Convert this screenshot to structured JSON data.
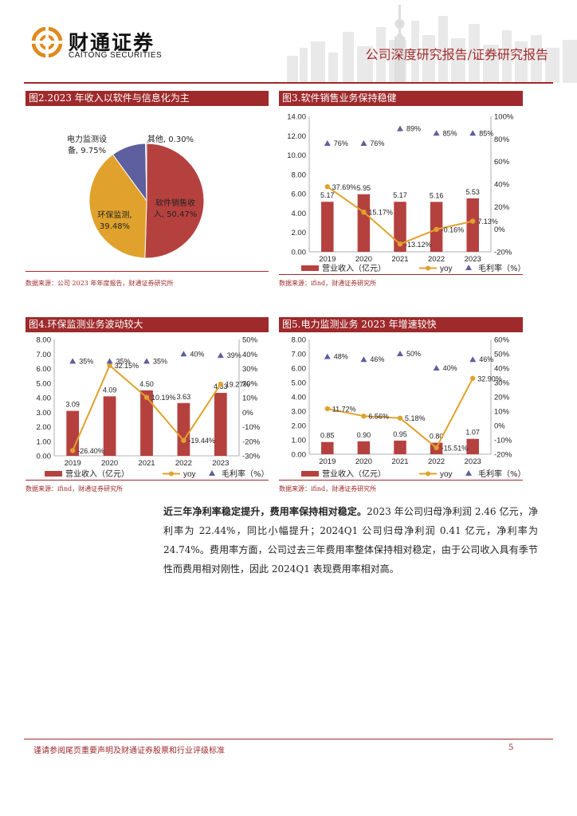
{
  "header": {
    "brand_cn": "财通证券",
    "brand_en": "CAITONG SECURITIES",
    "report_type": "公司深度研究报告/证券研究报告",
    "accent_color": "#9e2a2b"
  },
  "figures": {
    "fig2": {
      "title": "图2.2023 年收入以软件与信息化为主",
      "source": "数据来源：公司 2023 年年度报告，财通证券研究所"
    },
    "fig3": {
      "title": "图3.软件销售业务保持稳健",
      "source": "数据来源：ifind，财通证券研究所"
    },
    "fig4": {
      "title": "图4.环保监测业务波动较大",
      "source": "数据来源：ifind，财通证券研究所"
    },
    "fig5": {
      "title": "图5.电力监测业务 2023 年增速较快",
      "source": "数据来源：ifind，财通证券研究所"
    }
  },
  "chart_data": [
    {
      "id": "fig2",
      "type": "pie",
      "title": "图2.2023 年收入以软件与信息化为主",
      "slices": [
        {
          "name": "软件销售收入",
          "value": 50.47,
          "label_lines": [
            "软件销售收",
            "入, 50.47%"
          ],
          "color": "#b5413f"
        },
        {
          "name": "环保监测",
          "value": 39.48,
          "label_lines": [
            "环保监测,",
            "39.48%"
          ],
          "color": "#e0a22c"
        },
        {
          "name": "电力监测设备",
          "value": 9.75,
          "label_lines": [
            "电力监测设",
            "备, 9.75%"
          ],
          "color": "#5d5f9e"
        },
        {
          "name": "其他",
          "value": 0.3,
          "label_lines": [
            "其他, 0.30%"
          ],
          "color": "#6a9bc9"
        }
      ]
    },
    {
      "id": "fig3",
      "type": "bar",
      "title": "图3.软件销售业务保持稳健",
      "categories": [
        "2019",
        "2020",
        "2021",
        "2022",
        "2023"
      ],
      "series": [
        {
          "name": "营业收入（亿元）",
          "type": "bar",
          "axis": "left",
          "values": [
            5.17,
            5.95,
            5.17,
            5.16,
            5.53
          ],
          "labels": [
            "5.17",
            "5.95",
            "5.17",
            "5.16",
            "5.53"
          ]
        },
        {
          "name": "yoy",
          "type": "line",
          "axis": "right",
          "values": [
            37.69,
            15.17,
            -13.12,
            -0.16,
            7.13
          ],
          "labels": [
            "37.69%",
            "15.17%",
            "-13.12%",
            "-0.16%",
            "7.13%"
          ]
        },
        {
          "name": "毛利率（%）",
          "type": "scatter",
          "axis": "right",
          "values": [
            76,
            76,
            89,
            85,
            85
          ],
          "labels": [
            "76%",
            "76%",
            "89%",
            "85%",
            "85%"
          ]
        }
      ],
      "left_axis": {
        "min": 0,
        "max": 14,
        "step": 2,
        "tick_labels": [
          "0.00",
          "2.00",
          "4.00",
          "6.00",
          "8.00",
          "10.00",
          "12.00",
          "14.00"
        ]
      },
      "right_axis": {
        "min": -20,
        "max": 100,
        "step": 20,
        "tick_labels": [
          "-20%",
          "0%",
          "20%",
          "40%",
          "60%",
          "80%",
          "100%"
        ]
      },
      "legend": [
        "营业收入（亿元）",
        "yoy",
        "毛利率（%）"
      ],
      "legend_position": "bottom"
    },
    {
      "id": "fig4",
      "type": "bar",
      "title": "图4.环保监测业务波动较大",
      "categories": [
        "2019",
        "2020",
        "2021",
        "2022",
        "2023"
      ],
      "series": [
        {
          "name": "营业收入（亿元）",
          "type": "bar",
          "axis": "left",
          "values": [
            3.09,
            4.09,
            4.5,
            3.63,
            4.33
          ],
          "labels": [
            "3.09",
            "4.09",
            "4.50",
            "3.63",
            "4.33"
          ]
        },
        {
          "name": "yoy",
          "type": "line",
          "axis": "right",
          "values": [
            -26.4,
            32.15,
            10.19,
            -19.44,
            19.27
          ],
          "labels": [
            "-26.40%",
            "32.15%",
            "10.19%",
            "-19.44%",
            "19.27%"
          ]
        },
        {
          "name": "毛利率（%）",
          "type": "scatter",
          "axis": "right",
          "values": [
            35,
            35,
            35,
            40,
            39
          ],
          "labels": [
            "35%",
            "35%",
            "35%",
            "40%",
            "39%"
          ]
        }
      ],
      "left_axis": {
        "min": 0,
        "max": 8,
        "step": 1,
        "tick_labels": [
          "0.00",
          "1.00",
          "2.00",
          "3.00",
          "4.00",
          "5.00",
          "6.00",
          "7.00",
          "8.00"
        ]
      },
      "right_axis": {
        "min": -30,
        "max": 50,
        "step": 10,
        "tick_labels": [
          "-30%",
          "-20%",
          "-10%",
          "0%",
          "10%",
          "20%",
          "30%",
          "40%",
          "50%"
        ]
      },
      "legend": [
        "营业收入（亿元）",
        "yoy",
        "毛利率（%）"
      ],
      "legend_position": "bottom"
    },
    {
      "id": "fig5",
      "type": "bar",
      "title": "图5.电力监测业务 2023 年增速较快",
      "categories": [
        "2019",
        "2020",
        "2021",
        "2022",
        "2023"
      ],
      "series": [
        {
          "name": "营业收入（亿元）",
          "type": "bar",
          "axis": "left",
          "values": [
            0.85,
            0.9,
            0.95,
            0.8,
            1.07
          ],
          "labels": [
            "0.85",
            "0.90",
            "0.95",
            "0.80",
            "1.07"
          ]
        },
        {
          "name": "yoy",
          "type": "line",
          "axis": "right",
          "values": [
            11.72,
            6.56,
            5.18,
            -15.51,
            32.9
          ],
          "labels": [
            "11.72%",
            "6.56%",
            "5.18%",
            "-15.51%",
            "32.90%"
          ]
        },
        {
          "name": "毛利率（%）",
          "type": "scatter",
          "axis": "right",
          "values": [
            48,
            46,
            50,
            40,
            46
          ],
          "labels": [
            "48%",
            "46%",
            "50%",
            "40%",
            "46%"
          ]
        }
      ],
      "left_axis": {
        "min": 0,
        "max": 8,
        "step": 1,
        "tick_labels": [
          "0.00",
          "1.00",
          "2.00",
          "3.00",
          "4.00",
          "5.00",
          "6.00",
          "7.00",
          "8.00"
        ]
      },
      "right_axis": {
        "min": -20,
        "max": 60,
        "step": 10,
        "tick_labels": [
          "-20%",
          "-10%",
          "0%",
          "10%",
          "20%",
          "30%",
          "40%",
          "50%",
          "60%"
        ]
      },
      "legend": [
        "营业收入（亿元）",
        "yoy",
        "毛利率（%）"
      ],
      "legend_position": "bottom"
    }
  ],
  "colors": {
    "bar": "#b5413f",
    "line": "#e0a22c",
    "marker": "#5d5f9e"
  },
  "body": {
    "lead": "近三年净利率稳定提升，费用率保持相对稳定。",
    "text": "2023 年公司归母净利润 2.46 亿元，净利率为 22.44%，同比小幅提升；2024Q1 公司归母净利润 0.41 亿元，净利率为 24.74%。费用率方面，公司过去三年费用率整体保持相对稳定，由于公司收入具有季节性而费用相对刚性，因此 2024Q1 表现费用率相对高。"
  },
  "footer": {
    "note": "谨请参阅尾页重要声明及财通证券股票和行业评级标准",
    "page": "5"
  }
}
